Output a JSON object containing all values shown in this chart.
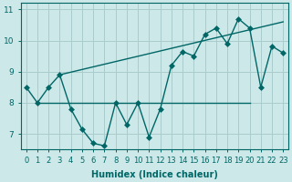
{
  "xlabel": "Humidex (Indice chaleur)",
  "x_values": [
    0,
    1,
    2,
    3,
    4,
    5,
    6,
    7,
    8,
    9,
    10,
    11,
    12,
    13,
    14,
    15,
    16,
    17,
    18,
    19,
    20,
    21,
    22,
    23
  ],
  "y_main": [
    8.5,
    8.0,
    8.5,
    8.9,
    7.8,
    7.15,
    6.7,
    6.62,
    8.0,
    7.3,
    8.0,
    6.9,
    7.8,
    9.2,
    9.65,
    9.5,
    10.2,
    10.4,
    9.9,
    10.7,
    10.4,
    8.5,
    9.82,
    9.6
  ],
  "y_hline_x": [
    1,
    20
  ],
  "y_hline_y": [
    8.0,
    8.0
  ],
  "y_trend_x": [
    3,
    23
  ],
  "y_trend_y": [
    8.9,
    10.6
  ],
  "line_color": "#006666",
  "bg_color": "#cce8e8",
  "grid_color": "#aacccc",
  "ylim": [
    6.5,
    11.2
  ],
  "xlim": [
    -0.5,
    23.5
  ],
  "yticks": [
    7,
    8,
    9,
    10,
    11
  ],
  "xticks": [
    0,
    1,
    2,
    3,
    4,
    5,
    6,
    7,
    8,
    9,
    10,
    11,
    12,
    13,
    14,
    15,
    16,
    17,
    18,
    19,
    20,
    21,
    22,
    23
  ],
  "marker_size": 3.0,
  "linewidth": 1.0,
  "tick_fontsize": 6.0,
  "xlabel_fontsize": 7.0
}
